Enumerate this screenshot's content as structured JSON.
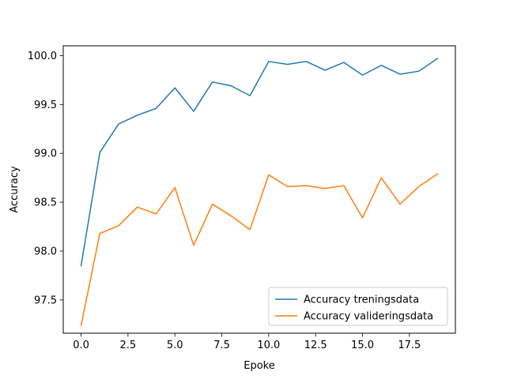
{
  "chart_data": {
    "type": "line",
    "title": "",
    "xlabel": "Epoke",
    "ylabel": "Accuracy",
    "xlim": [
      -0.95,
      19.95
    ],
    "ylim": [
      97.16,
      100.1
    ],
    "xticks": [
      0.0,
      2.5,
      5.0,
      7.5,
      10.0,
      12.5,
      15.0,
      17.5
    ],
    "xtick_labels": [
      "0.0",
      "2.5",
      "5.0",
      "7.5",
      "10.0",
      "12.5",
      "15.0",
      "17.5"
    ],
    "yticks": [
      97.5,
      98.0,
      98.5,
      99.0,
      99.5,
      100.0
    ],
    "ytick_labels": [
      "97.5",
      "98.0",
      "98.5",
      "99.0",
      "99.5",
      "100.0"
    ],
    "grid": false,
    "legend_position": "bottom-right",
    "x": [
      0,
      1,
      2,
      3,
      4,
      5,
      6,
      7,
      8,
      9,
      10,
      11,
      12,
      13,
      14,
      15,
      16,
      17,
      18,
      19
    ],
    "series": [
      {
        "name": "Accuracy treningsdata",
        "color": "#1f77b4",
        "values": [
          97.85,
          99.01,
          99.3,
          99.39,
          99.46,
          99.67,
          99.43,
          99.73,
          99.69,
          99.59,
          99.94,
          99.91,
          99.94,
          99.85,
          99.93,
          99.8,
          99.9,
          99.81,
          99.84,
          99.97
        ]
      },
      {
        "name": "Accuracy valideringsdata",
        "color": "#ff7f0e",
        "values": [
          97.24,
          98.18,
          98.26,
          98.45,
          98.38,
          98.65,
          98.06,
          98.48,
          98.36,
          98.22,
          98.78,
          98.66,
          98.67,
          98.64,
          98.67,
          98.34,
          98.75,
          98.48,
          98.66,
          98.79
        ]
      }
    ]
  }
}
